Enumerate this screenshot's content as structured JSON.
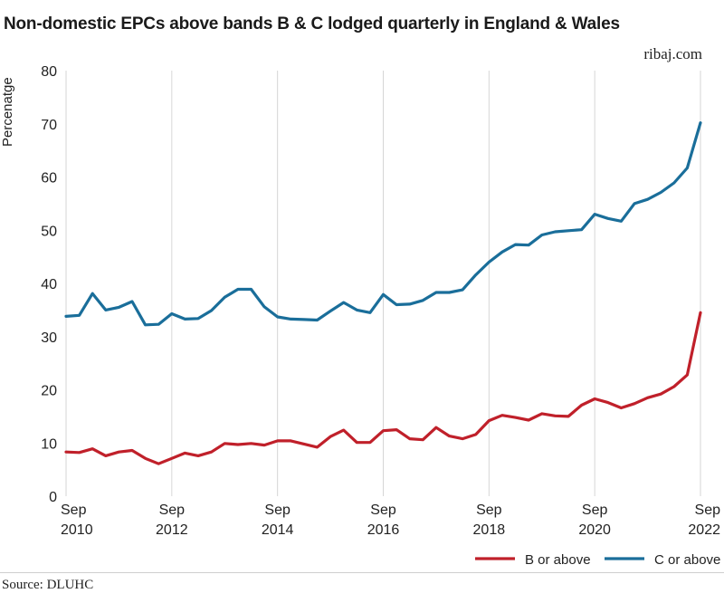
{
  "header": {
    "title": "Non-domestic EPCs above bands B & C lodged quarterly in England & Wales",
    "brand": "ribaj.com"
  },
  "footer": {
    "source": "Source: DLUHC"
  },
  "colors": {
    "b_or_above": "#c0202a",
    "c_or_above": "#1a6e9a",
    "grid": "#d6d6d6"
  },
  "chart_data": {
    "type": "line",
    "title": "Non-domestic EPCs above bands B & C lodged quarterly in England & Wales",
    "xlabel": "",
    "ylabel": "Percenatge",
    "ylim": [
      0,
      80
    ],
    "yticks": [
      0,
      10,
      20,
      30,
      40,
      50,
      60,
      70,
      80
    ],
    "xlim": [
      "Sep 2010",
      "Sep 2022"
    ],
    "xticks": [
      {
        "top": "Sep",
        "bottom": "2010"
      },
      {
        "top": "Sep",
        "bottom": "2012"
      },
      {
        "top": "Sep",
        "bottom": "2014"
      },
      {
        "top": "Sep",
        "bottom": "2016"
      },
      {
        "top": "Sep",
        "bottom": "2018"
      },
      {
        "top": "Sep",
        "bottom": "2020"
      },
      {
        "top": "Sep",
        "bottom": "2022"
      }
    ],
    "grid": "vertical",
    "legend_position": "bottom-right",
    "x": [
      "Sep 2010",
      "Dec 2010",
      "Mar 2011",
      "Jun 2011",
      "Sep 2011",
      "Dec 2011",
      "Mar 2012",
      "Jun 2012",
      "Sep 2012",
      "Dec 2012",
      "Mar 2013",
      "Jun 2013",
      "Sep 2013",
      "Dec 2013",
      "Mar 2014",
      "Jun 2014",
      "Sep 2014",
      "Dec 2014",
      "Mar 2015",
      "Jun 2015",
      "Sep 2015",
      "Dec 2015",
      "Mar 2016",
      "Jun 2016",
      "Sep 2016",
      "Dec 2016",
      "Mar 2017",
      "Jun 2017",
      "Sep 2017",
      "Dec 2017",
      "Mar 2018",
      "Jun 2018",
      "Sep 2018",
      "Dec 2018",
      "Mar 2019",
      "Jun 2019",
      "Sep 2019",
      "Dec 2019",
      "Mar 2020",
      "Jun 2020",
      "Sep 2020",
      "Dec 2020",
      "Mar 2021",
      "Jun 2021",
      "Sep 2021",
      "Dec 2021",
      "Mar 2022",
      "Jun 2022",
      "Sep 2022"
    ],
    "series": [
      {
        "name": "B or above",
        "color": "#c0202a",
        "values": [
          8.3,
          8.2,
          8.9,
          7.6,
          8.3,
          8.6,
          7.1,
          6.1,
          7.1,
          8.1,
          7.6,
          8.3,
          9.9,
          9.7,
          9.9,
          9.6,
          10.4,
          10.4,
          9.8,
          9.2,
          11.2,
          12.4,
          10.1,
          10.1,
          12.3,
          12.5,
          10.8,
          10.6,
          12.9,
          11.3,
          10.8,
          11.6,
          14.2,
          15.2,
          14.8,
          14.3,
          15.5,
          15.1,
          15.0,
          17.1,
          18.3,
          17.6,
          16.6,
          17.4,
          18.5,
          19.2,
          20.6,
          22.8,
          34.5
        ]
      },
      {
        "name": "C or above",
        "color": "#1a6e9a",
        "values": [
          33.8,
          34.0,
          38.1,
          35.0,
          35.5,
          36.6,
          32.2,
          32.3,
          34.3,
          33.3,
          33.4,
          34.9,
          37.4,
          38.9,
          38.9,
          35.6,
          33.7,
          33.3,
          33.2,
          33.1,
          34.8,
          36.4,
          35.0,
          34.5,
          37.9,
          36.0,
          36.1,
          36.8,
          38.3,
          38.3,
          38.8,
          41.6,
          44.0,
          45.9,
          47.3,
          47.2,
          49.1,
          49.7,
          49.9,
          50.1,
          53.0,
          52.2,
          51.7,
          55.0,
          55.8,
          57.1,
          58.9,
          61.7,
          70.2
        ]
      }
    ]
  }
}
